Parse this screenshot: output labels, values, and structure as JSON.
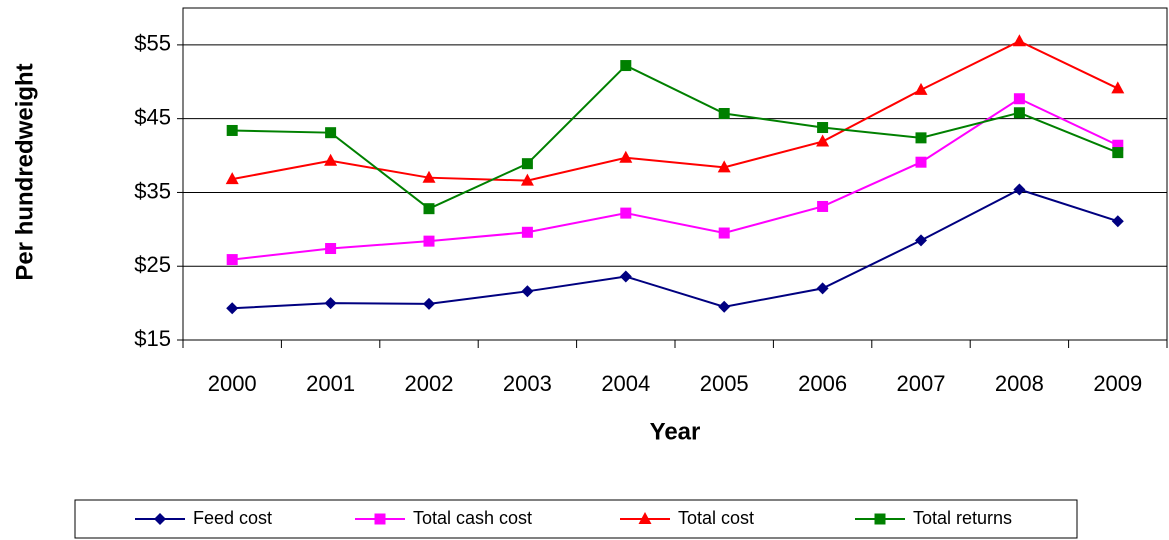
{
  "chart_data": {
    "type": "line",
    "x_label": "Year",
    "y_label": "Per hundredweight",
    "categories": [
      "2000",
      "2001",
      "2002",
      "2003",
      "2004",
      "2005",
      "2006",
      "2007",
      "2008",
      "2009"
    ],
    "series": [
      {
        "name": "Feed cost",
        "color": "#000080",
        "marker": "diamond",
        "values": [
          19.3,
          20.0,
          19.9,
          21.6,
          23.6,
          19.5,
          22.0,
          28.5,
          35.4,
          31.1
        ]
      },
      {
        "name": "Total cash cost",
        "color": "#ff00ff",
        "marker": "square",
        "values": [
          25.9,
          27.4,
          28.4,
          29.6,
          32.2,
          29.5,
          33.1,
          39.1,
          47.7,
          41.4
        ]
      },
      {
        "name": "Total cost",
        "color": "#ff0000",
        "marker": "triangle",
        "values": [
          36.8,
          39.3,
          37.0,
          36.6,
          39.7,
          38.4,
          41.9,
          48.9,
          55.5,
          49.1
        ]
      },
      {
        "name": "Total returns",
        "color": "#008000",
        "marker": "square",
        "values": [
          43.4,
          43.1,
          32.8,
          38.9,
          52.2,
          45.7,
          43.8,
          42.4,
          45.8,
          40.4
        ]
      }
    ],
    "ylim": [
      15,
      60
    ],
    "yticks": [
      {
        "value": 15,
        "label": "$15"
      },
      {
        "value": 25,
        "label": "$25"
      },
      {
        "value": 35,
        "label": "$35"
      },
      {
        "value": 45,
        "label": "$45"
      },
      {
        "value": 55,
        "label": "$55"
      }
    ],
    "grid": true,
    "legend": "bottom"
  }
}
